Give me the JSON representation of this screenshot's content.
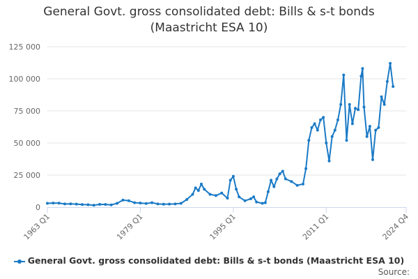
{
  "chart_data": {
    "type": "line",
    "title_line1": "General Govt. gross consolidated debt: Bills & s-t bonds",
    "title_line2": "(Maastricht ESA 10)",
    "xlabel": "",
    "ylabel": "",
    "ylim": [
      0,
      125000
    ],
    "yticks": [
      0,
      25000,
      50000,
      75000,
      100000,
      125000
    ],
    "ytick_labels": [
      "0",
      "25 000",
      "50 000",
      "75 000",
      "100 000",
      "125 000"
    ],
    "xticks": [
      "1963 Q1",
      "1979 Q1",
      "1995 Q1",
      "2011 Q1",
      "2024 Q4"
    ],
    "grid": true,
    "legend": "bottom",
    "series": [
      {
        "name": "General Govt. gross consolidated debt: Bills & s-t bonds (Maastricht ESA 10)",
        "color": "#1a7ac6",
        "points": [
          [
            "1963 Q1",
            3000
          ],
          [
            "1964 Q1",
            3200
          ],
          [
            "1965 Q1",
            3100
          ],
          [
            "1966 Q1",
            2500
          ],
          [
            "1967 Q1",
            2600
          ],
          [
            "1968 Q1",
            2400
          ],
          [
            "1969 Q1",
            2000
          ],
          [
            "1970 Q1",
            1900
          ],
          [
            "1971 Q1",
            1500
          ],
          [
            "1972 Q1",
            2200
          ],
          [
            "1973 Q1",
            2100
          ],
          [
            "1974 Q1",
            1800
          ],
          [
            "1975 Q1",
            3000
          ],
          [
            "1976 Q1",
            5500
          ],
          [
            "1977 Q1",
            5000
          ],
          [
            "1978 Q1",
            3500
          ],
          [
            "1979 Q1",
            3200
          ],
          [
            "1980 Q1",
            2800
          ],
          [
            "1981 Q1",
            3500
          ],
          [
            "1982 Q1",
            2500
          ],
          [
            "1983 Q1",
            2300
          ],
          [
            "1984 Q1",
            2400
          ],
          [
            "1985 Q1",
            2500
          ],
          [
            "1986 Q1",
            3000
          ],
          [
            "1987 Q1",
            6000
          ],
          [
            "1988 Q1",
            10000
          ],
          [
            "1988 Q3",
            15000
          ],
          [
            "1989 Q1",
            13000
          ],
          [
            "1989 Q3",
            18000
          ],
          [
            "1990 Q1",
            14000
          ],
          [
            "1991 Q1",
            10000
          ],
          [
            "1992 Q1",
            9000
          ],
          [
            "1993 Q1",
            11000
          ],
          [
            "1994 Q1",
            7000
          ],
          [
            "1994 Q3",
            21000
          ],
          [
            "1995 Q1",
            24000
          ],
          [
            "1995 Q3",
            14000
          ],
          [
            "1996 Q1",
            8000
          ],
          [
            "1997 Q1",
            5000
          ],
          [
            "1998 Q1",
            6500
          ],
          [
            "1998 Q3",
            8000
          ],
          [
            "1999 Q1",
            4000
          ],
          [
            "2000 Q1",
            3000
          ],
          [
            "2000 Q3",
            3500
          ],
          [
            "2001 Q1",
            12000
          ],
          [
            "2001 Q3",
            21000
          ],
          [
            "2002 Q1",
            16000
          ],
          [
            "2002 Q3",
            22000
          ],
          [
            "2003 Q1",
            26000
          ],
          [
            "2003 Q3",
            28000
          ],
          [
            "2004 Q1",
            22000
          ],
          [
            "2005 Q1",
            20000
          ],
          [
            "2006 Q1",
            17000
          ],
          [
            "2007 Q1",
            18000
          ],
          [
            "2007 Q3",
            30000
          ],
          [
            "2008 Q1",
            52000
          ],
          [
            "2008 Q3",
            62000
          ],
          [
            "2009 Q1",
            65000
          ],
          [
            "2009 Q3",
            60000
          ],
          [
            "2010 Q1",
            68000
          ],
          [
            "2010 Q3",
            70000
          ],
          [
            "2011 Q1",
            50000
          ],
          [
            "2011 Q3",
            36000
          ],
          [
            "2012 Q1",
            55000
          ],
          [
            "2012 Q3",
            60000
          ],
          [
            "2013 Q1",
            68000
          ],
          [
            "2013 Q3",
            80000
          ],
          [
            "2014 Q1",
            103000
          ],
          [
            "2014 Q3",
            52000
          ],
          [
            "2015 Q1",
            80000
          ],
          [
            "2015 Q3",
            65000
          ],
          [
            "2016 Q1",
            77000
          ],
          [
            "2016 Q3",
            76000
          ],
          [
            "2017 Q1",
            102000
          ],
          [
            "2017 Q2",
            108000
          ],
          [
            "2017 Q3",
            78000
          ],
          [
            "2018 Q1",
            55000
          ],
          [
            "2018 Q3",
            63000
          ],
          [
            "2019 Q1",
            37000
          ],
          [
            "2019 Q3",
            60000
          ],
          [
            "2020 Q1",
            62000
          ],
          [
            "2020 Q3",
            86000
          ],
          [
            "2021 Q1",
            80000
          ],
          [
            "2021 Q3",
            98000
          ],
          [
            "2022 Q1",
            112000
          ],
          [
            "2022 Q3",
            94000
          ]
        ]
      }
    ]
  },
  "source_label": "Source:"
}
